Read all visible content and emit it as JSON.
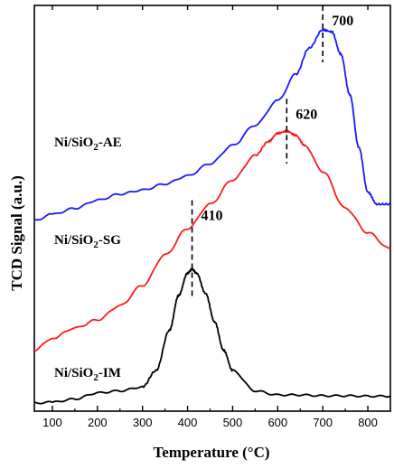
{
  "chart_data": {
    "type": "line",
    "title": "",
    "xlabel": "Temperature (°C)",
    "ylabel": "TCD Signal (a.u.)",
    "xlim": [
      60,
      850
    ],
    "xticks": [
      100,
      200,
      300,
      400,
      500,
      600,
      700,
      800
    ],
    "y_tick_labels_shown": false,
    "grid": false,
    "series": [
      {
        "name": "Ni/SiO2-AE",
        "color": "#1a1aff",
        "x": [
          60,
          100,
          150,
          200,
          250,
          300,
          350,
          400,
          450,
          500,
          550,
          600,
          640,
          670,
          700,
          720,
          740,
          760,
          780,
          800,
          820,
          850
        ],
        "y": [
          0.47,
          0.485,
          0.5,
          0.52,
          0.535,
          0.545,
          0.56,
          0.58,
          0.61,
          0.655,
          0.705,
          0.765,
          0.83,
          0.895,
          0.94,
          0.935,
          0.88,
          0.78,
          0.65,
          0.54,
          0.51,
          0.51
        ]
      },
      {
        "name": "Ni/SiO2-SG",
        "color": "#ff1a1a",
        "x": [
          60,
          100,
          150,
          200,
          250,
          300,
          350,
          400,
          450,
          500,
          550,
          580,
          600,
          620,
          640,
          660,
          700,
          750,
          800,
          850
        ],
        "y": [
          0.15,
          0.18,
          0.205,
          0.225,
          0.26,
          0.31,
          0.385,
          0.45,
          0.51,
          0.57,
          0.63,
          0.665,
          0.685,
          0.69,
          0.68,
          0.655,
          0.59,
          0.5,
          0.44,
          0.4
        ]
      },
      {
        "name": "Ni/SiO2-IM",
        "color": "#000000",
        "x": [
          60,
          100,
          150,
          200,
          250,
          300,
          330,
          360,
          380,
          400,
          410,
          420,
          440,
          460,
          480,
          500,
          550,
          600,
          650,
          700,
          750,
          800,
          850
        ],
        "y": [
          0.02,
          0.022,
          0.03,
          0.045,
          0.05,
          0.06,
          0.1,
          0.2,
          0.285,
          0.34,
          0.35,
          0.34,
          0.29,
          0.22,
          0.15,
          0.1,
          0.05,
          0.04,
          0.04,
          0.038,
          0.038,
          0.037,
          0.037
        ]
      }
    ],
    "series_labels": [
      {
        "prefix": "Ni/SiO",
        "sub": "2",
        "suffix": "-AE"
      },
      {
        "prefix": "Ni/SiO",
        "sub": "2",
        "suffix": "-SG"
      },
      {
        "prefix": "Ni/SiO",
        "sub": "2",
        "suffix": "-IM"
      }
    ],
    "annotations": [
      {
        "text": "700",
        "x": 700,
        "line_top": 1.02,
        "line_bottom": 0.86
      },
      {
        "text": "620",
        "x": 620,
        "line_top": 0.77,
        "line_bottom": 0.61
      },
      {
        "text": "410",
        "x": 410,
        "line_top": 0.52,
        "line_bottom": 0.28
      }
    ]
  }
}
